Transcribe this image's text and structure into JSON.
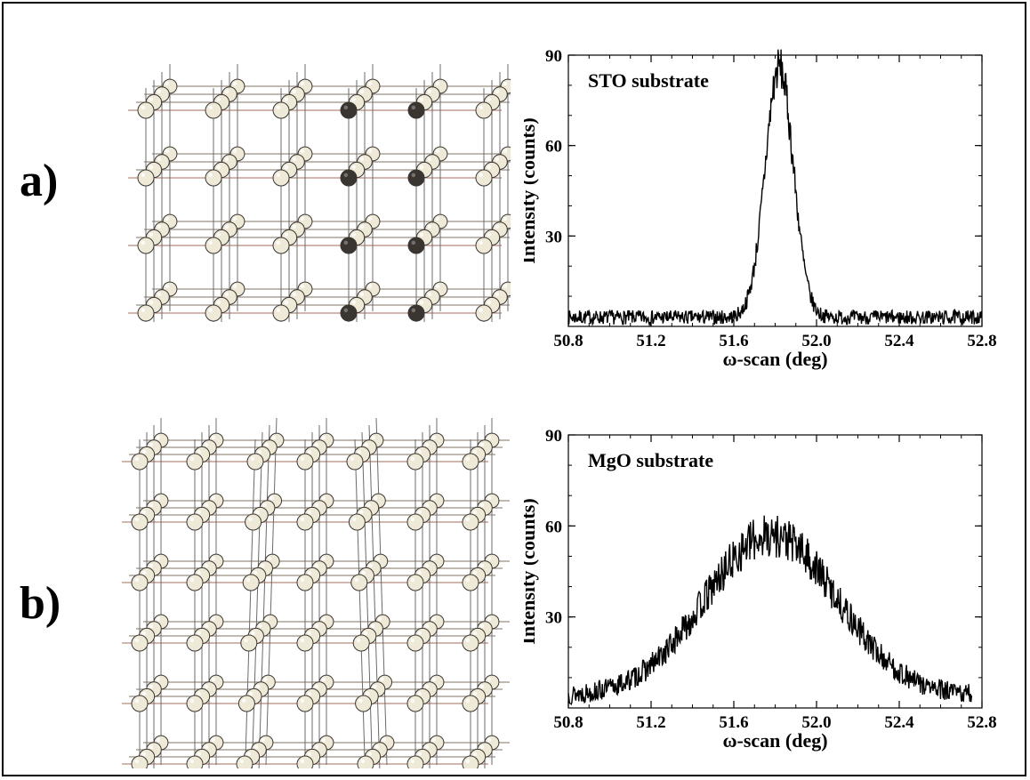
{
  "panels": [
    {
      "label": "a)"
    },
    {
      "label": "b)"
    }
  ],
  "chart_data": [
    {
      "type": "line",
      "annotation": "STO substrate",
      "xlabel": "ω-scan (deg)",
      "ylabel": "Intensity (counts)",
      "xlim": [
        50.8,
        52.8
      ],
      "ylim": [
        0,
        90
      ],
      "xticks": [
        "50.8",
        "51.2",
        "51.6",
        "52.0",
        "52.4",
        "52.8"
      ],
      "yticks": [
        "30",
        "60",
        "90"
      ],
      "grid": false,
      "series": [
        {
          "peak_center": 51.82,
          "peak_height": 86,
          "fwhm": 0.16,
          "baseline": 3,
          "x": [
            50.8,
            51.0,
            51.2,
            51.4,
            51.5,
            51.6,
            51.65,
            51.7,
            51.75,
            51.8,
            51.82,
            51.85,
            51.9,
            51.95,
            52.0,
            52.1,
            52.2,
            52.4,
            52.6,
            52.8
          ],
          "y": [
            3,
            3,
            3,
            4,
            5,
            8,
            15,
            32,
            62,
            84,
            86,
            80,
            55,
            25,
            8,
            4,
            3,
            3,
            3,
            3
          ]
        }
      ]
    },
    {
      "type": "line",
      "annotation": "MgO substrate",
      "xlabel": "ω-scan (deg)",
      "ylabel": "Intensity (counts)",
      "xlim": [
        50.8,
        52.8
      ],
      "ylim": [
        0,
        90
      ],
      "xticks": [
        "50.8",
        "51.2",
        "51.6",
        "52.0",
        "52.4",
        "52.8"
      ],
      "yticks": [
        "30",
        "60",
        "90"
      ],
      "grid": false,
      "series": [
        {
          "peak_center": 51.78,
          "peak_height": 57,
          "fwhm": 0.75,
          "baseline": 4,
          "x": [
            50.8,
            51.0,
            51.2,
            51.4,
            51.5,
            51.6,
            51.7,
            51.8,
            51.9,
            52.0,
            52.1,
            52.2,
            52.4,
            52.6,
            52.75
          ],
          "y": [
            6,
            9,
            14,
            27,
            36,
            47,
            55,
            57,
            54,
            45,
            34,
            25,
            12,
            6,
            5
          ]
        }
      ]
    }
  ]
}
